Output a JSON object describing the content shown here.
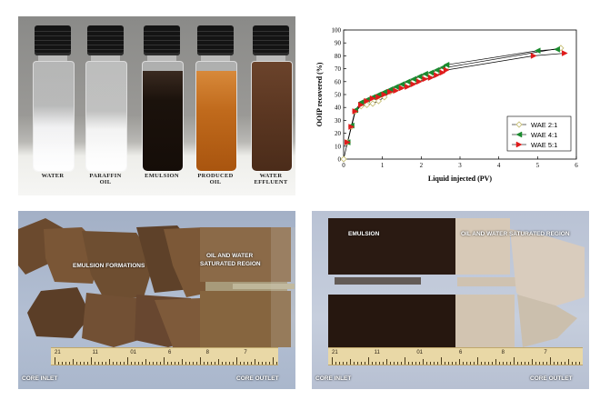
{
  "panel_a": {
    "vials": [
      {
        "label_lines": [
          "WATER"
        ],
        "fill": "water"
      },
      {
        "label_lines": [
          "PARAFFIN",
          "OIL"
        ],
        "fill": "paraffin"
      },
      {
        "label_lines": [
          "EMULSION"
        ],
        "fill": "emulsion"
      },
      {
        "label_lines": [
          "PRODUCED",
          "OIL"
        ],
        "fill": "produced"
      },
      {
        "label_lines": [
          "WATER",
          "EFFLUENT"
        ],
        "fill": "effluent"
      }
    ]
  },
  "panel_c": {
    "label_emulsion": "EMULSION FORMATIONS",
    "label_region_1": "OIL AND WATER",
    "label_region_2": "SATURATED REGION",
    "label_inlet": "CORE INLET",
    "label_outlet": "CORE OUTLET",
    "ruler_numbers": [
      "21",
      "11",
      "01",
      "6",
      "8",
      "7"
    ]
  },
  "panel_d": {
    "label_emulsion": "EMULSION",
    "label_region": "OIL AND WATER SATURATED REGION",
    "label_inlet": "CORE INLET",
    "label_outlet": "CORE OUTLET",
    "ruler_numbers": [
      "21",
      "11",
      "01",
      "6",
      "8",
      "7"
    ]
  },
  "chart_data": {
    "type": "scatter",
    "xlabel": "Liquid injected (PV)",
    "ylabel": "OOIP recovered (%)",
    "xlim": [
      0,
      6
    ],
    "ylim": [
      0,
      100
    ],
    "xticks": [
      "0",
      "1",
      "2",
      "3",
      "4",
      "5",
      "6"
    ],
    "yticks": [
      "0",
      "10",
      "20",
      "30",
      "40",
      "50",
      "60",
      "70",
      "80",
      "90",
      "100"
    ],
    "legend_position": "lower-right",
    "grid": false,
    "series": [
      {
        "name": "WAE 2:1",
        "marker": "diamond-open",
        "color": "#c9c17a",
        "x": [
          0,
          0.1,
          0.2,
          0.3,
          0.45,
          0.6,
          0.75,
          0.9,
          1.05,
          1.2,
          1.35,
          1.5,
          1.65,
          1.8,
          1.95,
          2.1,
          2.25,
          2.4,
          2.55,
          2.65,
          5.6
        ],
        "y": [
          0,
          13,
          25,
          37,
          41,
          42,
          43,
          45,
          48,
          52,
          54,
          56,
          58,
          60,
          62,
          64,
          66,
          67,
          69,
          71,
          86
        ]
      },
      {
        "name": "WAE 4:1",
        "marker": "triangle-left",
        "color": "#1a8a2e",
        "x": [
          0.1,
          0.2,
          0.3,
          0.45,
          0.6,
          0.75,
          0.9,
          1.05,
          1.2,
          1.35,
          1.5,
          1.65,
          1.8,
          1.95,
          2.1,
          2.25,
          2.4,
          2.55,
          2.65,
          5.0,
          5.5
        ],
        "y": [
          13,
          26,
          38,
          44,
          46,
          48,
          50,
          52,
          54,
          56,
          58,
          60,
          62,
          64,
          66,
          67,
          69,
          71,
          73,
          84,
          85
        ]
      },
      {
        "name": "WAE 5:1",
        "marker": "triangle-right",
        "color": "#e01b1b",
        "x": [
          0.1,
          0.2,
          0.3,
          0.45,
          0.6,
          0.75,
          0.9,
          1.05,
          1.2,
          1.35,
          1.5,
          1.65,
          1.8,
          1.95,
          2.1,
          2.25,
          2.4,
          2.55,
          2.65,
          4.9,
          5.7
        ],
        "y": [
          13,
          25,
          37,
          42,
          45,
          47,
          48,
          50,
          52,
          53,
          55,
          56,
          58,
          60,
          62,
          63,
          65,
          67,
          69,
          80,
          82
        ]
      }
    ]
  }
}
